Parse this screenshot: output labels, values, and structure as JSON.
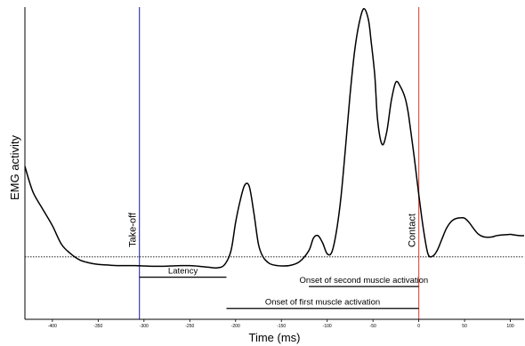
{
  "chart_data": {
    "type": "line",
    "xlabel": "Time (ms)",
    "ylabel": "EMG activity",
    "xlim": [
      -430,
      115
    ],
    "ylim": [
      0,
      1
    ],
    "x_ticks": [
      -400,
      -350,
      -300,
      -250,
      -200,
      -150,
      -100,
      -50,
      0,
      50,
      100
    ],
    "x_tick_labels": [
      "-400",
      "-350",
      "-300",
      "-250",
      "-200",
      "-150",
      "-100",
      "-50",
      "0",
      "50",
      "100"
    ],
    "baseline": 0.2,
    "series": [
      {
        "x": [
          -430,
          -425,
          -420,
          -410,
          -400,
          -390,
          -380,
          -370,
          -360,
          -350,
          -340,
          -330,
          -320,
          -310,
          -300,
          -290,
          -280,
          -270,
          -260,
          -250,
          -240,
          -230,
          -220,
          -212,
          -205,
          -200,
          -195,
          -190,
          -185,
          -180,
          -175,
          -170,
          -165,
          -160,
          -150,
          -140,
          -130,
          -120,
          -115,
          -110,
          -105,
          -100,
          -95,
          -90,
          -85,
          -80,
          -75,
          -70,
          -65,
          -60,
          -55,
          -52,
          -48,
          -45,
          -40,
          -35,
          -30,
          -25,
          -20,
          -15,
          -12,
          -10,
          -5,
          0,
          5,
          10,
          15,
          20,
          25,
          30,
          35,
          40,
          45,
          50,
          55,
          60,
          65,
          70,
          75,
          80,
          85,
          90,
          95,
          100,
          105,
          110,
          115
        ],
        "y": [
          0.49,
          0.44,
          0.4,
          0.35,
          0.3,
          0.24,
          0.21,
          0.19,
          0.181,
          0.176,
          0.174,
          0.172,
          0.172,
          0.172,
          0.171,
          0.17,
          0.17,
          0.171,
          0.172,
          0.172,
          0.17,
          0.167,
          0.165,
          0.175,
          0.22,
          0.31,
          0.38,
          0.43,
          0.425,
          0.34,
          0.24,
          0.2,
          0.183,
          0.175,
          0.171,
          0.173,
          0.185,
          0.22,
          0.26,
          0.268,
          0.245,
          0.21,
          0.215,
          0.28,
          0.39,
          0.55,
          0.72,
          0.86,
          0.95,
          0.995,
          0.96,
          0.89,
          0.78,
          0.64,
          0.56,
          0.6,
          0.7,
          0.76,
          0.745,
          0.71,
          0.67,
          0.63,
          0.52,
          0.4,
          0.29,
          0.21,
          0.202,
          0.22,
          0.255,
          0.29,
          0.312,
          0.322,
          0.325,
          0.324,
          0.31,
          0.29,
          0.273,
          0.265,
          0.263,
          0.264,
          0.268,
          0.27,
          0.271,
          0.272,
          0.27,
          0.268,
          0.268
        ]
      }
    ],
    "events": [
      {
        "label": "Take-off",
        "x": -305,
        "color": "#3c3cb4"
      },
      {
        "label": "Contact",
        "x": 0,
        "color": "#e05a4a"
      }
    ],
    "intervals": [
      {
        "label": "Latency",
        "start": -305,
        "end": -210,
        "y": 0.135
      },
      {
        "label": "Onset of second muscle activation",
        "start": -120,
        "end": 0,
        "y": 0.105
      },
      {
        "label": "Onset of first muscle activation",
        "start": -210,
        "end": 0,
        "y": 0.035
      }
    ]
  }
}
